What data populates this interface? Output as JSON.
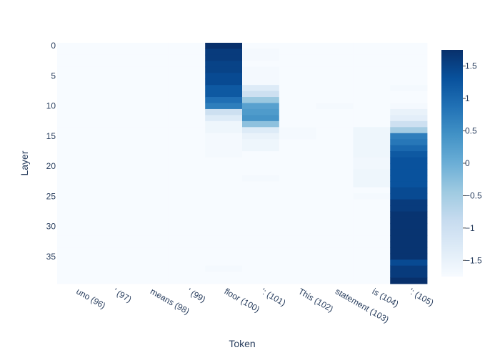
{
  "chart_data": {
    "type": "heatmap",
    "title": "",
    "xlabel": "Token",
    "ylabel": "Layer",
    "x_categories": [
      "uno (96)",
      "' (97)",
      "means (98)",
      "' (99)",
      "floor (100)",
      "': (101)",
      "This (102)",
      "statement (103)",
      "is (104)",
      "': (105)"
    ],
    "y_range": [
      0,
      39
    ],
    "y_ticks": [
      0,
      5,
      10,
      15,
      20,
      25,
      30,
      35
    ],
    "y_reversed": true,
    "colorscale": "Blues",
    "zmin": -1.75,
    "zmax": 1.75,
    "colorbar_ticks": [
      1.5,
      1,
      0.5,
      0,
      -0.5,
      -1,
      -1.5
    ],
    "colorbar_tick_labels": [
      "1.5",
      "1",
      "0.5",
      "0",
      "−0.5",
      "−1",
      "−1.5"
    ],
    "background_value": -1.75,
    "columns": [
      {
        "token": "uno (96)",
        "values": []
      },
      {
        "token": "' (97)",
        "values": []
      },
      {
        "token": "means (98)",
        "values": []
      },
      {
        "token": "' (99)",
        "values": []
      },
      {
        "token": "floor (100)",
        "values": [
          1.75,
          1.6,
          1.6,
          1.5,
          1.5,
          1.4,
          1.4,
          1.2,
          1.2,
          0.9,
          0.7,
          -1.0,
          -1.3,
          -1.6,
          -1.6,
          -1.7,
          -1.7,
          -1.7,
          -1.7,
          -1.75,
          -1.75,
          -1.75,
          -1.75,
          -1.75,
          -1.75,
          -1.75,
          -1.75,
          -1.75,
          -1.75,
          -1.75,
          -1.75,
          -1.75,
          -1.75,
          -1.75,
          -1.75,
          -1.75,
          -1.75,
          -1.7,
          -1.75,
          -1.75
        ]
      },
      {
        "token": "': (101)",
        "values": [
          -1.75,
          -1.7,
          -1.7,
          -1.75,
          -1.7,
          -1.7,
          -1.7,
          -1.3,
          -1.0,
          -0.4,
          0.2,
          0.3,
          0.4,
          -0.3,
          -1.3,
          -1.5,
          -1.6,
          -1.6,
          -1.75,
          -1.75,
          -1.75,
          -1.75,
          -1.7,
          -1.75,
          -1.75,
          -1.75,
          -1.75,
          -1.75,
          -1.75,
          -1.75,
          -1.75,
          -1.75,
          -1.75,
          -1.75,
          -1.75,
          -1.75,
          -1.75,
          -1.75,
          -1.75,
          -1.75
        ]
      },
      {
        "token": "This (102)",
        "values": [
          -1.75,
          -1.75,
          -1.75,
          -1.75,
          -1.75,
          -1.75,
          -1.75,
          -1.75,
          -1.75,
          -1.75,
          -1.75,
          -1.75,
          -1.75,
          -1.75,
          -1.7,
          -1.7,
          -1.75,
          -1.75,
          -1.75,
          -1.75,
          -1.75,
          -1.75,
          -1.75,
          -1.75,
          -1.75,
          -1.75,
          -1.75,
          -1.75,
          -1.75,
          -1.75,
          -1.75,
          -1.75,
          -1.75,
          -1.75,
          -1.75,
          -1.75,
          -1.75,
          -1.75,
          -1.75,
          -1.75
        ]
      },
      {
        "token": "statement (103)",
        "values": [
          -1.75,
          -1.75,
          -1.75,
          -1.75,
          -1.75,
          -1.75,
          -1.75,
          -1.75,
          -1.75,
          -1.75,
          -1.7,
          -1.75,
          -1.75,
          -1.75,
          -1.75,
          -1.75,
          -1.75,
          -1.75,
          -1.75,
          -1.75,
          -1.75,
          -1.75,
          -1.75,
          -1.75,
          -1.75,
          -1.75,
          -1.75,
          -1.75,
          -1.75,
          -1.75,
          -1.75,
          -1.75,
          -1.75,
          -1.75,
          -1.75,
          -1.75,
          -1.75,
          -1.75,
          -1.75,
          -1.75
        ]
      },
      {
        "token": "is (104)",
        "values": [
          -1.75,
          -1.75,
          -1.75,
          -1.75,
          -1.75,
          -1.75,
          -1.75,
          -1.75,
          -1.75,
          -1.75,
          -1.75,
          -1.75,
          -1.75,
          -1.75,
          -1.6,
          -1.6,
          -1.6,
          -1.6,
          -1.6,
          -1.65,
          -1.65,
          -1.6,
          -1.6,
          -1.6,
          -1.75,
          -1.7,
          -1.75,
          -1.75,
          -1.75,
          -1.75,
          -1.75,
          -1.75,
          -1.75,
          -1.75,
          -1.75,
          -1.75,
          -1.75,
          -1.75,
          -1.75,
          -1.75
        ]
      },
      {
        "token": "': (105)",
        "values": [
          -1.75,
          -1.75,
          -1.75,
          -1.75,
          -1.75,
          -1.75,
          -1.75,
          -1.7,
          -1.75,
          -1.75,
          -1.7,
          -1.5,
          -1.4,
          -1.0,
          -0.5,
          0.7,
          0.8,
          1.0,
          1.2,
          1.3,
          1.3,
          1.3,
          1.3,
          1.3,
          1.4,
          1.4,
          1.6,
          1.6,
          1.7,
          1.7,
          1.7,
          1.7,
          1.7,
          1.7,
          1.7,
          1.7,
          1.4,
          1.6,
          1.6,
          1.75
        ]
      }
    ]
  }
}
